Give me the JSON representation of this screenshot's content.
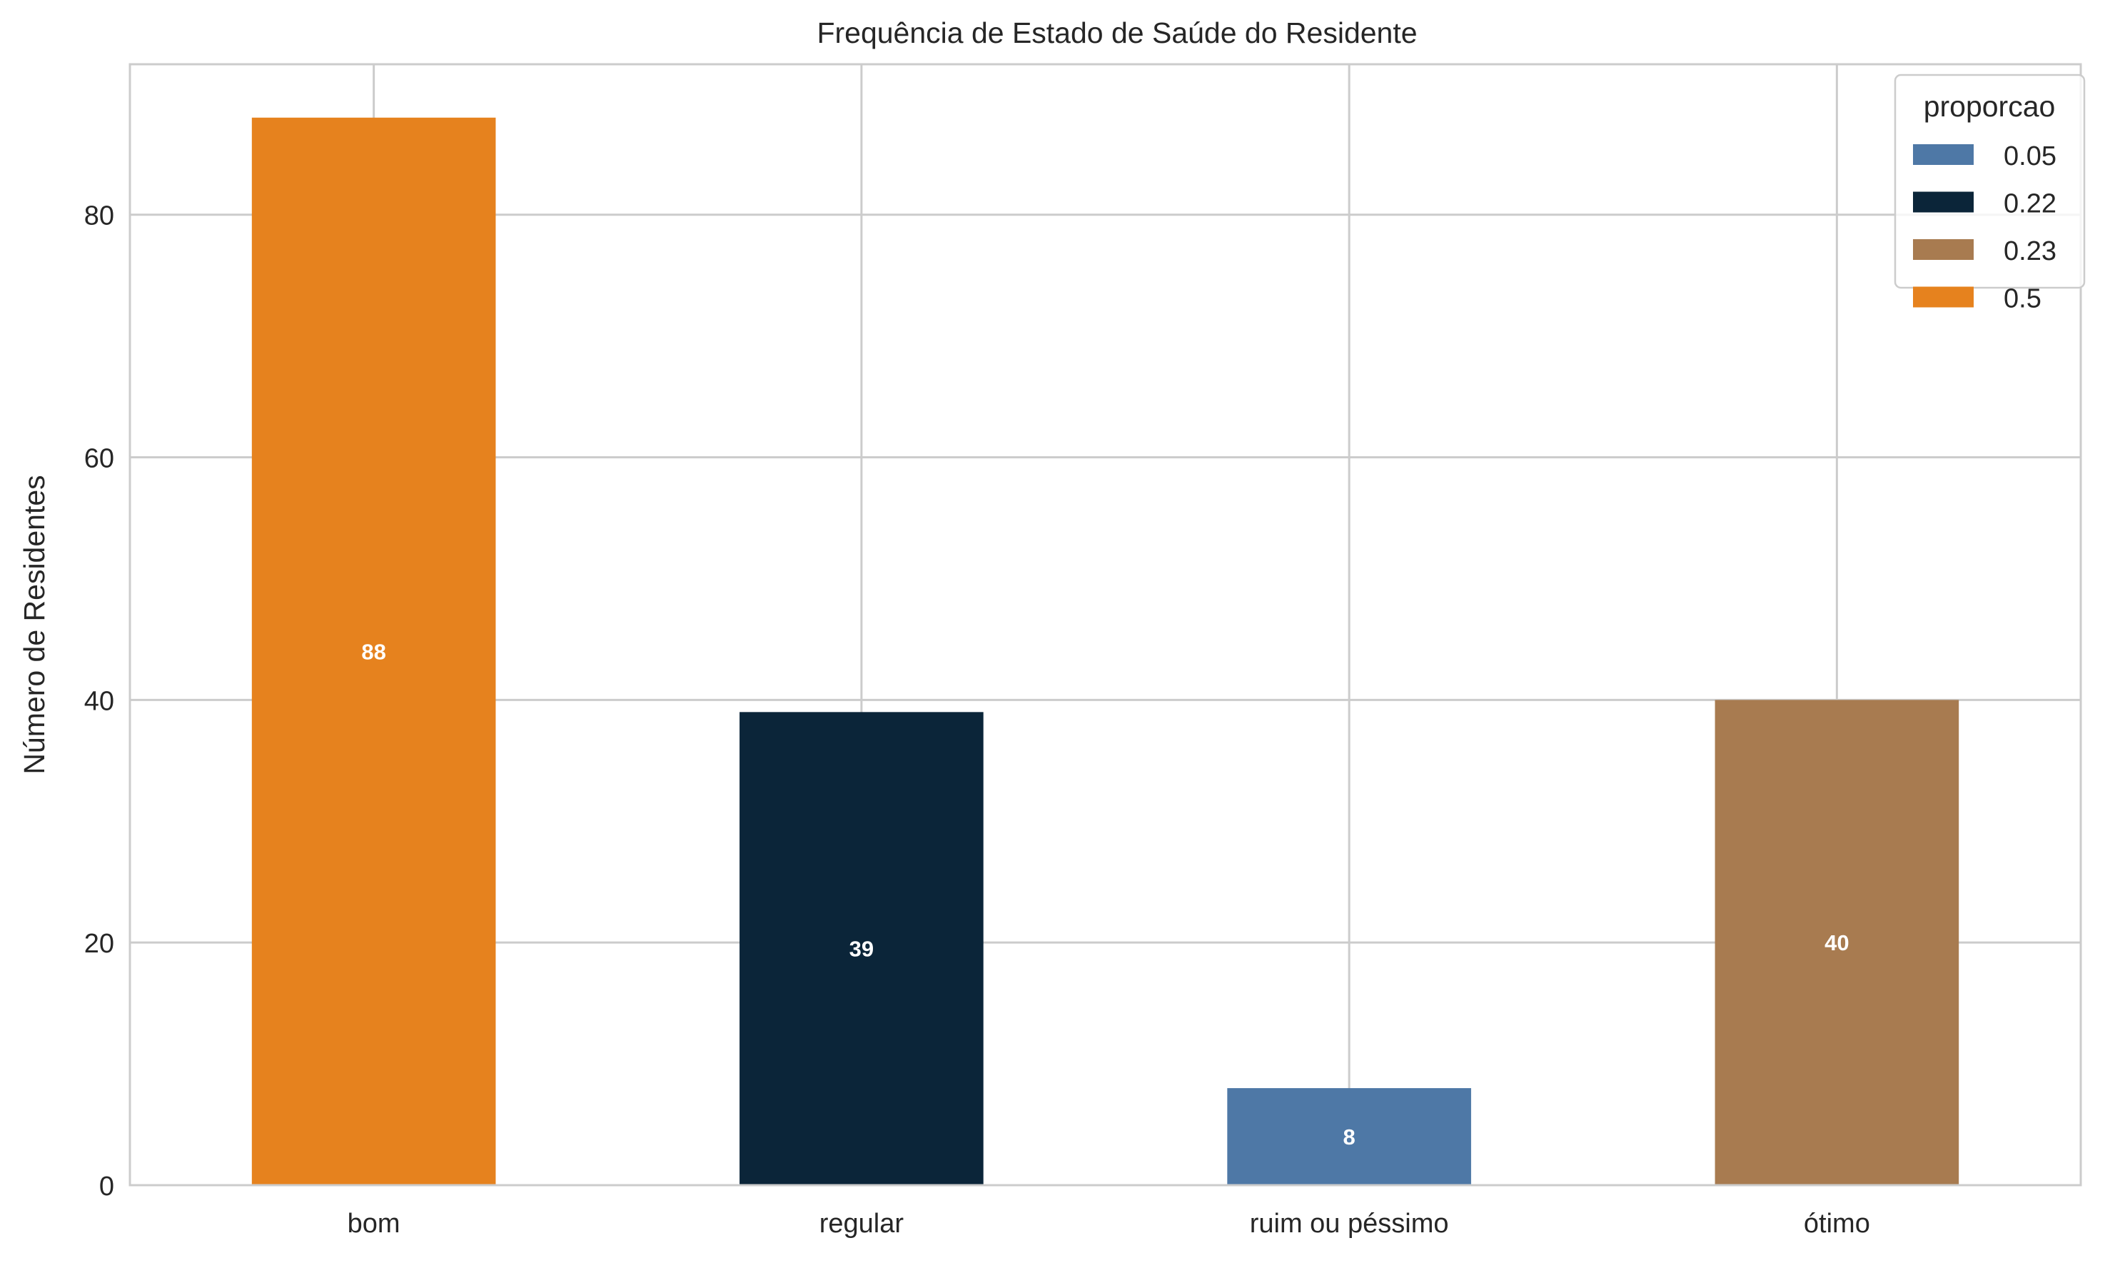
{
  "chart_data": {
    "type": "bar",
    "title": "Frequência de Estado de Saúde do Residente",
    "xlabel": "",
    "ylabel": "Número de Residentes",
    "categories": [
      "bom",
      "regular",
      "ruim ou péssimo",
      "ótimo"
    ],
    "values": [
      88,
      39,
      8,
      40
    ],
    "value_labels": [
      "88",
      "39",
      "8",
      "40"
    ],
    "bar_colors": [
      "#e6821e",
      "#0b2539",
      "#4e78a6",
      "#a87b50"
    ],
    "ylim": [
      0,
      92.4
    ],
    "yticks": [
      0,
      20,
      40,
      60,
      80
    ],
    "ytick_labels": [
      "0",
      "20",
      "40",
      "60",
      "80"
    ],
    "grid": true,
    "legend": {
      "title": "proporcao",
      "placement": "top-right",
      "entries": [
        {
          "label": "0.05",
          "color": "#4e78a6"
        },
        {
          "label": "0.22",
          "color": "#0b2539"
        },
        {
          "label": "0.23",
          "color": "#a87b50"
        },
        {
          "label": "0.5",
          "color": "#e6821e"
        }
      ]
    }
  }
}
